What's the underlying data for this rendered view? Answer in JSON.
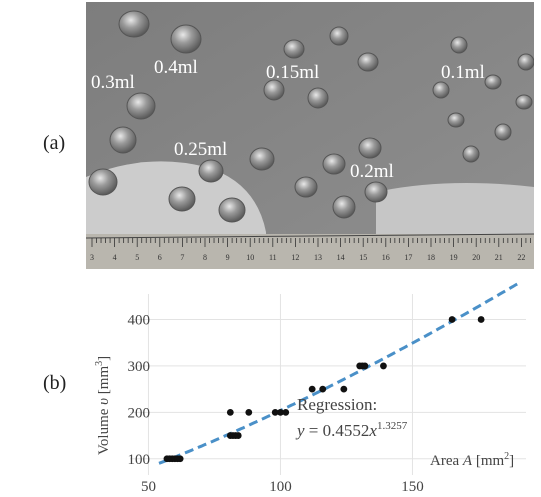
{
  "panel_a": {
    "label": "(a)",
    "annotations": [
      "0.3ml",
      "0.4ml",
      "0.15ml",
      "0.1ml",
      "0.25ml",
      "0.2ml"
    ],
    "ruler_numbers": [
      "3",
      "4",
      "5",
      "6",
      "7",
      "8",
      "9",
      "10",
      "11",
      "12",
      "13",
      "14",
      "15",
      "16",
      "17",
      "18",
      "19",
      "20",
      "21",
      "22"
    ]
  },
  "panel_b": {
    "label": "(b)"
  },
  "chart_data": {
    "type": "scatter",
    "xlabel": "Area A [mm2]",
    "ylabel": "Volume υ [mm3]",
    "xlim": [
      43,
      193
    ],
    "ylim": [
      65,
      455
    ],
    "x_ticks": [
      50,
      100,
      150
    ],
    "y_ticks": [
      100,
      200,
      300,
      400
    ],
    "grid": true,
    "series": [
      {
        "values": [
          [
            57,
            100
          ],
          [
            58,
            100
          ],
          [
            59,
            100
          ],
          [
            60,
            100
          ],
          [
            61,
            100
          ],
          [
            62,
            100
          ],
          [
            81,
            150
          ],
          [
            82,
            150
          ],
          [
            83,
            150
          ],
          [
            84,
            150
          ],
          [
            81,
            200
          ],
          [
            88,
            200
          ],
          [
            98,
            200
          ],
          [
            100,
            200
          ],
          [
            102,
            200
          ],
          [
            112,
            250
          ],
          [
            116,
            250
          ],
          [
            124,
            250
          ],
          [
            130,
            300
          ],
          [
            131,
            300
          ],
          [
            132,
            300
          ],
          [
            139,
            300
          ],
          [
            165,
            400
          ],
          [
            176,
            400
          ]
        ]
      }
    ],
    "regression": {
      "label_line1": "Regression:",
      "label_line2": "y = 0.4552x1.3257",
      "a": 0.4552,
      "b": 1.3257,
      "color": "#4a90c8"
    }
  }
}
